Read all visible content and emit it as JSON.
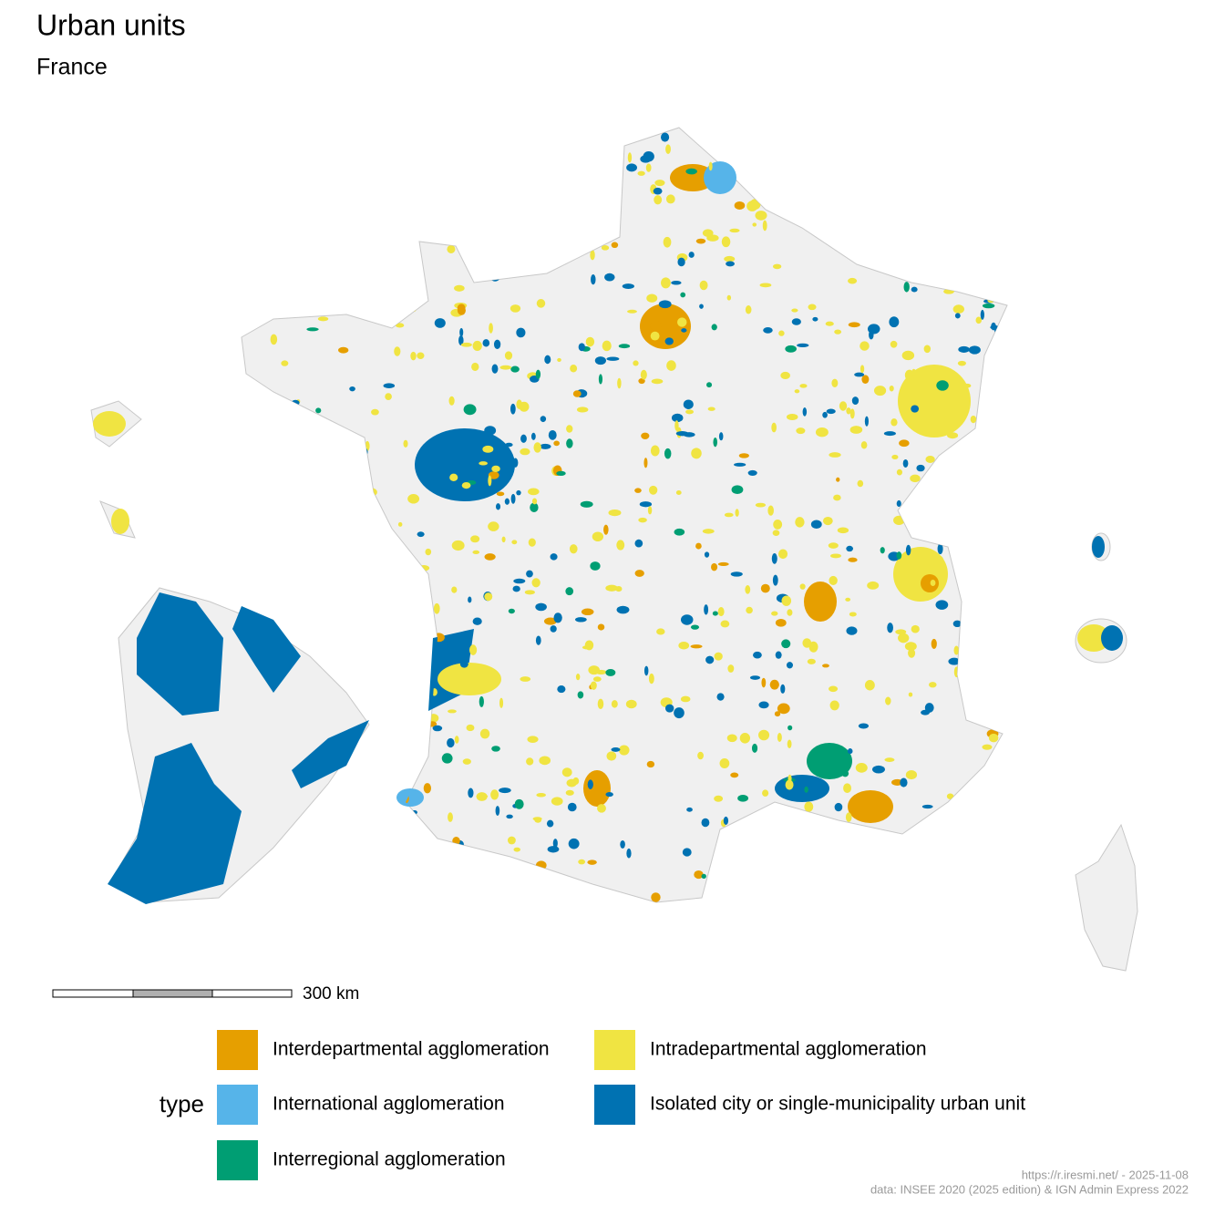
{
  "title": "Urban units",
  "subtitle": "France",
  "scale_bar": {
    "label": "300 km"
  },
  "legend": {
    "title": "type",
    "items": [
      {
        "label": "Interdepartmental agglomeration",
        "color": "#e69f00"
      },
      {
        "label": "International agglomeration",
        "color": "#56b4e9"
      },
      {
        "label": "Interregional agglomeration",
        "color": "#009e73"
      },
      {
        "label": "Intradepartmental agglomeration",
        "color": "#f0e442"
      },
      {
        "label": "Isolated city or single-municipality urban unit",
        "color": "#0072b2"
      }
    ]
  },
  "caption": [
    "https://r.iresmi.net/ - 2025-11-08",
    "data: INSEE 2020 (2025 edition) & IGN Admin Express 2022"
  ]
}
